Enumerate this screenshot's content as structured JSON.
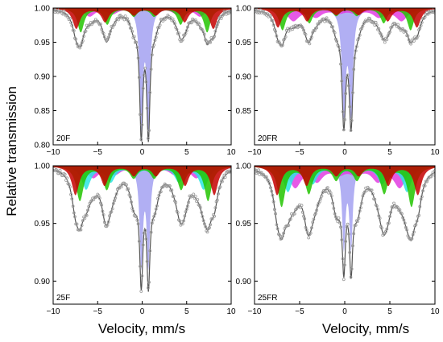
{
  "chart_data": {
    "type": "line",
    "ylabel": "Relative transmission",
    "xlabel": "Velocity, mm/s",
    "xlim": [
      -10,
      10
    ],
    "x_ticks": [
      "−10",
      "−5",
      "0",
      "5",
      "10"
    ],
    "colors": {
      "envelope": "#555555",
      "points": "#9a9a9a",
      "doublet": "#a9a6f2",
      "sextet_a": "#c40000",
      "sextet_b": "#22c400",
      "sextet_c": "#e23ce2",
      "sextet_d": "#2ce4e4"
    },
    "panels": [
      {
        "label": "20F",
        "ylim": [
          0.8,
          1.0
        ],
        "y_ticks": [
          "0.80",
          "0.85",
          "0.90",
          "0.95",
          "1.00"
        ],
        "doublet": {
          "center": 0.3,
          "split": 0.8,
          "depth": 0.17,
          "width": 0.22
        },
        "sextets": [
          {
            "color": "sextet_a",
            "center": 0.3,
            "hyperfine": 7.7,
            "depth": 0.03,
            "width": 0.5
          },
          {
            "color": "sextet_b",
            "center": 0.2,
            "hyperfine": 7.1,
            "depth": 0.035,
            "width": 0.45
          },
          {
            "color": "sextet_c",
            "center": 0.3,
            "hyperfine": 6.2,
            "depth": 0.012,
            "width": 0.7
          }
        ]
      },
      {
        "label": "20FR",
        "ylim": [
          0.8,
          1.0
        ],
        "y_ticks": [
          "0.85",
          "0.90",
          "0.95",
          "1.00"
        ],
        "doublet": {
          "center": 0.3,
          "split": 0.8,
          "depth": 0.15,
          "width": 0.25
        },
        "sextets": [
          {
            "color": "sextet_a",
            "center": 0.3,
            "hyperfine": 7.7,
            "depth": 0.028,
            "width": 0.5
          },
          {
            "color": "sextet_b",
            "center": 0.2,
            "hyperfine": 7.1,
            "depth": 0.032,
            "width": 0.45
          },
          {
            "color": "sextet_c",
            "center": 0.3,
            "hyperfine": 6.0,
            "depth": 0.018,
            "width": 0.8
          }
        ]
      },
      {
        "label": "25F",
        "ylim": [
          0.88,
          1.0
        ],
        "y_ticks": [
          "0.90",
          "0.95",
          "1.00"
        ],
        "doublet": {
          "center": 0.3,
          "split": 0.8,
          "depth": 0.085,
          "width": 0.22
        },
        "sextets": [
          {
            "color": "sextet_a",
            "center": 0.3,
            "hyperfine": 7.8,
            "depth": 0.025,
            "width": 0.5
          },
          {
            "color": "sextet_b",
            "center": 0.2,
            "hyperfine": 7.2,
            "depth": 0.03,
            "width": 0.5
          },
          {
            "color": "sextet_d",
            "center": 0.3,
            "hyperfine": 6.6,
            "depth": 0.02,
            "width": 0.6
          },
          {
            "color": "sextet_c",
            "center": 0.3,
            "hyperfine": 5.8,
            "depth": 0.01,
            "width": 0.8
          }
        ]
      },
      {
        "label": "25FR",
        "ylim": [
          0.88,
          1.0
        ],
        "y_ticks": [
          "0.90",
          "0.95",
          "1.00"
        ],
        "doublet": {
          "center": 0.3,
          "split": 0.8,
          "depth": 0.07,
          "width": 0.22
        },
        "sextets": [
          {
            "color": "sextet_a",
            "center": 0.3,
            "hyperfine": 7.8,
            "depth": 0.025,
            "width": 0.5
          },
          {
            "color": "sextet_b",
            "center": 0.2,
            "hyperfine": 7.2,
            "depth": 0.035,
            "width": 0.5
          },
          {
            "color": "sextet_d",
            "center": 0.3,
            "hyperfine": 6.6,
            "depth": 0.022,
            "width": 0.6
          },
          {
            "color": "sextet_c",
            "center": 0.3,
            "hyperfine": 5.8,
            "depth": 0.018,
            "width": 0.8
          }
        ]
      }
    ]
  }
}
